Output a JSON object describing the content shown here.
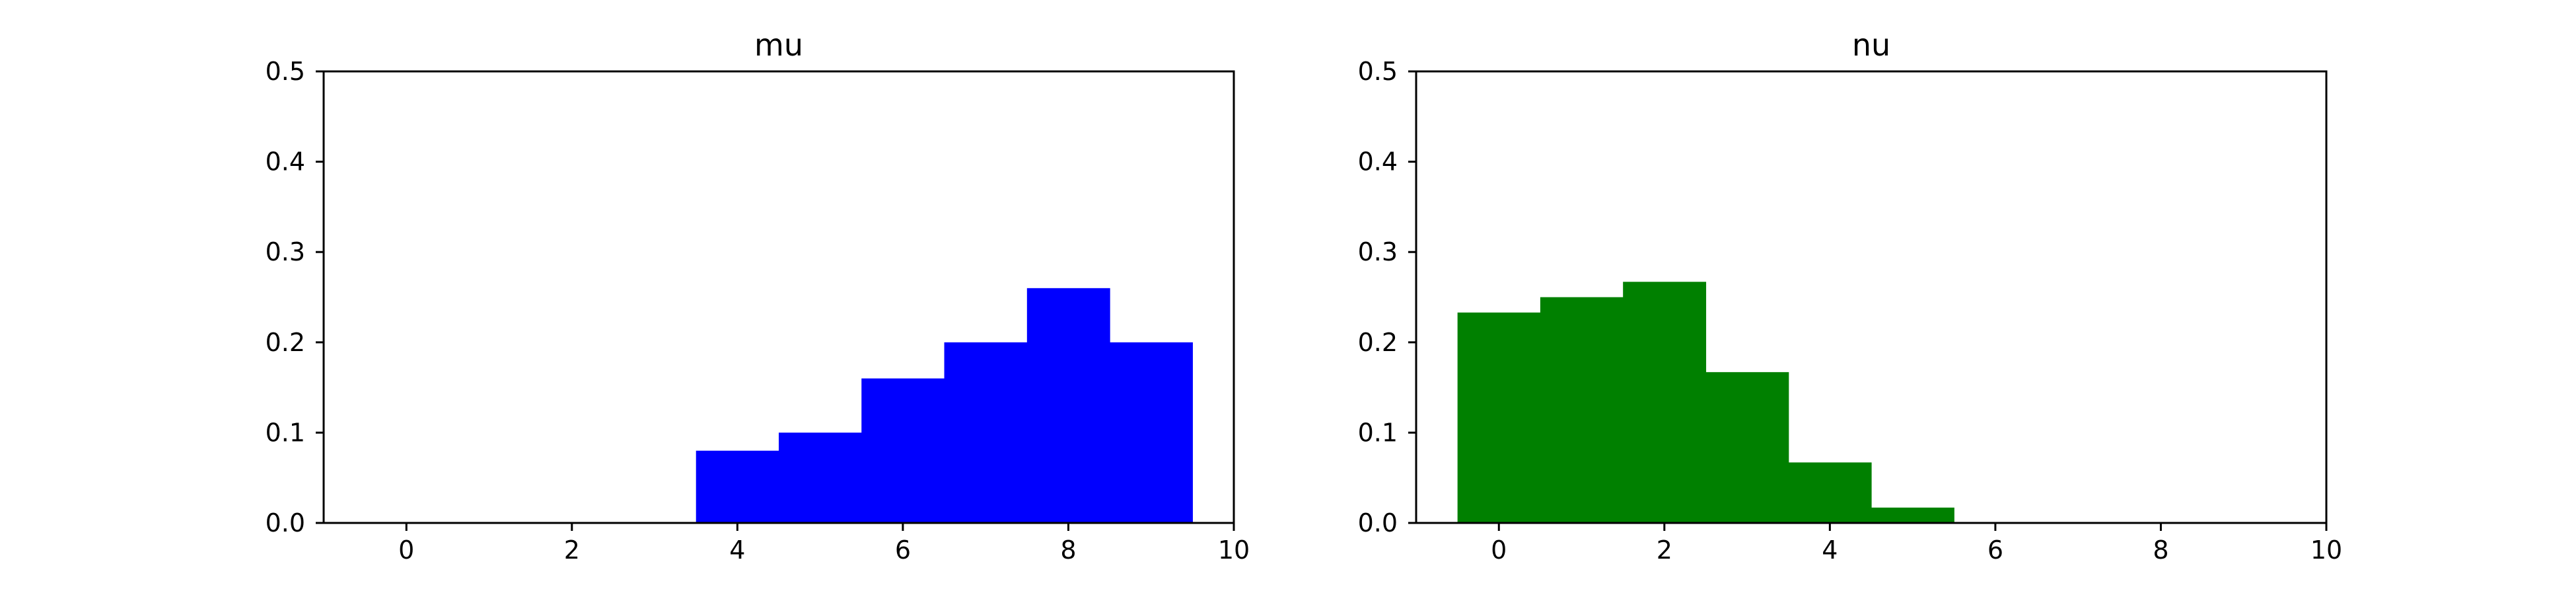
{
  "chart_data": [
    {
      "type": "bar",
      "title": "mu",
      "xlabel": "",
      "ylabel": "",
      "xlim": [
        -1,
        10
      ],
      "ylim": [
        0,
        0.5
      ],
      "xticks": [
        "0",
        "2",
        "4",
        "6",
        "8",
        "10"
      ],
      "yticks": [
        "0.0",
        "0.1",
        "0.2",
        "0.3",
        "0.4",
        "0.5"
      ],
      "grid": false,
      "legend": "none",
      "color": "#0000ff",
      "bar_width": 1,
      "x": [
        4,
        5,
        6,
        7,
        8,
        9
      ],
      "values": [
        0.08,
        0.1,
        0.16,
        0.2,
        0.26,
        0.2
      ]
    },
    {
      "type": "bar",
      "title": "nu",
      "xlabel": "",
      "ylabel": "",
      "xlim": [
        -1,
        10
      ],
      "ylim": [
        0,
        0.5
      ],
      "xticks": [
        "0",
        "2",
        "4",
        "6",
        "8",
        "10"
      ],
      "yticks": [
        "0.0",
        "0.1",
        "0.2",
        "0.3",
        "0.4",
        "0.5"
      ],
      "grid": false,
      "legend": "none",
      "color": "#008000",
      "bar_width": 1,
      "x": [
        0,
        1,
        2,
        3,
        4,
        5
      ],
      "values": [
        0.233,
        0.25,
        0.267,
        0.167,
        0.067,
        0.017
      ]
    }
  ]
}
